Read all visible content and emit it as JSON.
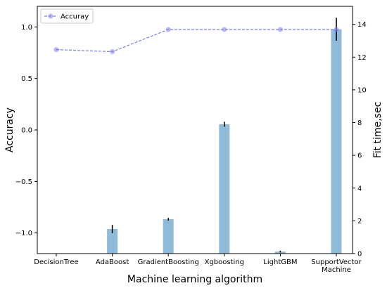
{
  "chart_data": {
    "type": "bar+line",
    "categories": [
      "DecisionTree",
      "AdaBoost",
      "GradientBoosting",
      "Xgboosting",
      "LightGBM",
      "SupportVector Machine"
    ],
    "xlabel": "Machine learning algorithm",
    "ylabel_left": "Accuracy",
    "ylabel_right": "Fit time,sec",
    "ylim_left": [
      -1.2,
      1.2
    ],
    "ylim_right": [
      0,
      15.1
    ],
    "yticks_left": [
      -1.0,
      -0.5,
      0.0,
      0.5,
      1.0
    ],
    "yticks_left_labels": [
      "−1.0",
      "−0.5",
      "0.0",
      "0.5",
      "1.0"
    ],
    "yticks_right": [
      0,
      2,
      4,
      6,
      8,
      10,
      12,
      14
    ],
    "grid": false,
    "legend_position": "top-left",
    "line_series": {
      "name": "Accuray",
      "axis": "left",
      "color": "#7b7bf7",
      "values": [
        0.78,
        0.76,
        0.975,
        0.975,
        0.975,
        0.975
      ]
    },
    "bar_series": {
      "axis": "right",
      "color": "#8fbbd9",
      "values": [
        0.02,
        1.5,
        2.1,
        7.9,
        0.12,
        13.7
      ],
      "errors": [
        0.0,
        0.25,
        0.08,
        0.15,
        0.05,
        0.7
      ]
    }
  }
}
